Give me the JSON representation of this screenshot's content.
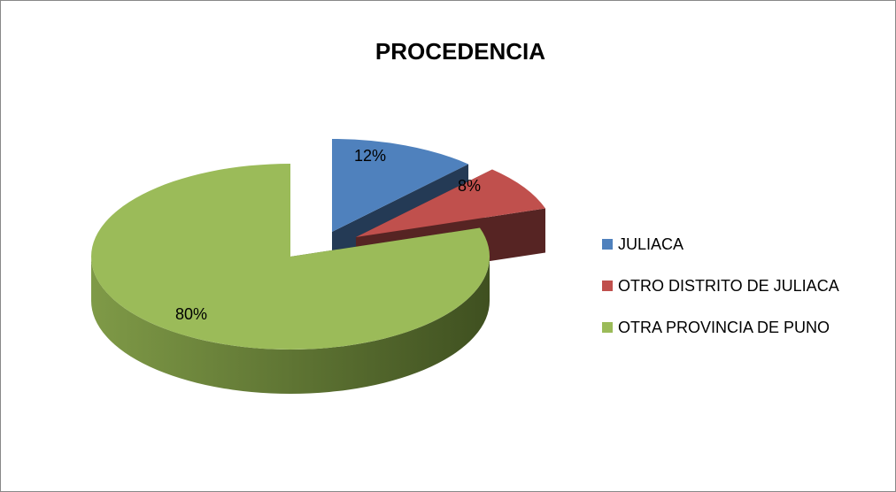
{
  "chart_data": {
    "type": "pie",
    "title": "PROCEDENCIA",
    "categories": [
      "JULIACA",
      "OTRO DISTRITO DE JULIACA",
      "OTRA PROVINCIA DE PUNO"
    ],
    "values": [
      12,
      8,
      80
    ],
    "value_labels": [
      "12%",
      "8%",
      "80%"
    ],
    "colors": [
      "#4f81bd",
      "#c0504d",
      "#9bbb59"
    ],
    "legend": "right"
  }
}
